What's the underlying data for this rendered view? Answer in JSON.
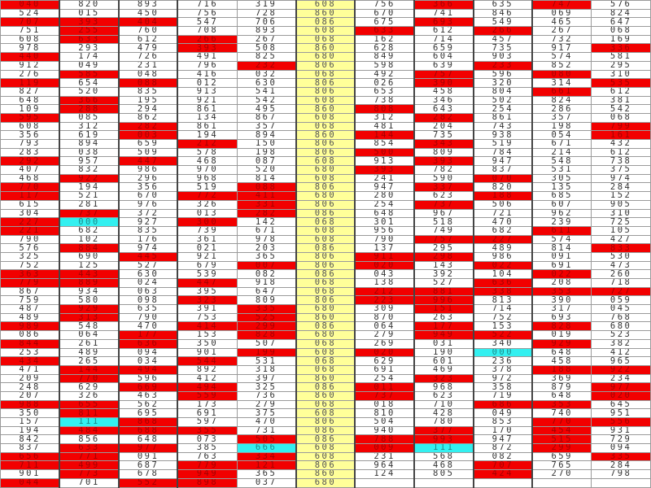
{
  "colors": {
    "red": "#f20000",
    "cyan": "#33f0f0",
    "middle": "#ffff99"
  },
  "rows": [
    [
      {
        "v": "040",
        "fill": "red"
      },
      "820",
      "893",
      "716",
      "319",
      "608",
      "756",
      {
        "v": "366",
        "fill": "red"
      },
      "635",
      {
        "v": "747",
        "fill": "red"
      },
      "576"
    ],
    [
      "524",
      "015",
      "450",
      "756",
      "728",
      "860",
      "670",
      "741",
      "846",
      "069",
      "824"
    ],
    [
      {
        "v": "707",
        "fill": "red"
      },
      {
        "v": "393",
        "fill": "red"
      },
      {
        "v": "404",
        "fill": "red"
      },
      "547",
      "706",
      "086",
      "675",
      {
        "v": "693",
        "fill": "red"
      },
      "549",
      "465",
      "647"
    ],
    [
      "751",
      {
        "v": "255",
        "fill": "red"
      },
      "760",
      "708",
      "893",
      "608",
      {
        "v": "633",
        "fill": "red"
      },
      "612",
      {
        "v": "266",
        "fill": "red"
      },
      "267",
      "068"
    ],
    [
      "608",
      {
        "v": "633",
        "fill": "red"
      },
      "612",
      {
        "v": "266",
        "fill": "red"
      },
      "267",
      "068",
      "162",
      "714",
      "457",
      "732",
      "169"
    ],
    [
      "978",
      "293",
      "479",
      {
        "v": "393",
        "fill": "red"
      },
      "508",
      "860",
      "628",
      "659",
      "735",
      "917",
      {
        "v": "336",
        "fill": "red"
      }
    ],
    [
      {
        "v": "440",
        "fill": "red"
      },
      "174",
      "726",
      "491",
      "825",
      "680",
      "849",
      "604",
      "903",
      "574",
      "581"
    ],
    [
      "912",
      "049",
      "231",
      "796",
      {
        "v": "232",
        "fill": "red"
      },
      "806",
      "598",
      "639",
      {
        "v": "233",
        "fill": "red"
      },
      "852",
      "295"
    ],
    [
      "276",
      {
        "v": "585",
        "fill": "red"
      },
      "048",
      "416",
      "032",
      "068",
      "492",
      {
        "v": "757",
        "fill": "red"
      },
      "596",
      {
        "v": "080",
        "fill": "red"
      },
      "310"
    ],
    [
      {
        "v": "119",
        "fill": "red"
      },
      "654",
      {
        "v": "088",
        "fill": "red"
      },
      "012",
      "630",
      "806",
      "026",
      {
        "v": "390",
        "fill": "red"
      },
      "320",
      "314",
      {
        "v": "535",
        "fill": "red"
      }
    ],
    [
      "827",
      "520",
      "835",
      "913",
      "541",
      "806",
      "653",
      "458",
      "804",
      {
        "v": "661",
        "fill": "red"
      },
      "612"
    ],
    [
      "648",
      {
        "v": "366",
        "fill": "red"
      },
      "195",
      "921",
      "542",
      "608",
      "738",
      "346",
      "502",
      "824",
      "381"
    ],
    [
      "109",
      {
        "v": "288",
        "fill": "red"
      },
      "294",
      "861",
      "495",
      "860",
      {
        "v": "808",
        "fill": "red"
      },
      "643",
      "254",
      "286",
      "542"
    ],
    [
      {
        "v": "595",
        "fill": "red"
      },
      "085",
      "862",
      "134",
      "867",
      "608",
      "312",
      {
        "v": "282",
        "fill": "red"
      },
      "861",
      "357",
      "068"
    ],
    [
      "608",
      "312",
      {
        "v": "282",
        "fill": "red"
      },
      "861",
      "357",
      "068",
      "481",
      "204",
      "743",
      "198",
      {
        "v": "799",
        "fill": "red"
      }
    ],
    [
      "356",
      "619",
      {
        "v": "003",
        "fill": "red"
      },
      "194",
      "894",
      "860",
      {
        "v": "144",
        "fill": "red"
      },
      "735",
      "938",
      "054",
      {
        "v": "161",
        "fill": "red"
      }
    ],
    [
      "793",
      "894",
      "659",
      {
        "v": "212",
        "fill": "red"
      },
      "150",
      "806",
      "854",
      {
        "v": "343",
        "fill": "red"
      },
      "519",
      "671",
      "432"
    ],
    [
      "283",
      "038",
      "509",
      "578",
      "198",
      "806",
      {
        "v": "500",
        "fill": "red"
      },
      "809",
      "784",
      "214",
      "612"
    ],
    [
      {
        "v": "292",
        "fill": "red"
      },
      "957",
      {
        "v": "447",
        "fill": "red"
      },
      "468",
      "087",
      "608",
      "913",
      {
        "v": "393",
        "fill": "red"
      },
      "947",
      "548",
      "738"
    ],
    [
      "407",
      "832",
      "986",
      "970",
      "520",
      "680",
      {
        "v": "393",
        "fill": "red"
      },
      "782",
      "837",
      "531",
      "375"
    ],
    [
      "468",
      {
        "v": "922",
        "fill": "red"
      },
      "296",
      "968",
      "814",
      "608",
      "241",
      "590",
      {
        "v": "070",
        "fill": "red"
      },
      "305",
      "974"
    ],
    [
      {
        "v": "770",
        "fill": "red"
      },
      "194",
      "356",
      "519",
      {
        "v": "088",
        "fill": "red"
      },
      "806",
      "947",
      {
        "v": "337",
        "fill": "red"
      },
      "820",
      "135",
      "284"
    ],
    [
      {
        "v": "117",
        "fill": "red"
      },
      "521",
      "670",
      {
        "v": "772",
        "fill": "red"
      },
      {
        "v": "411",
        "fill": "red"
      },
      "680",
      "280",
      "623",
      {
        "v": "188",
        "fill": "red"
      },
      "685",
      "152"
    ],
    [
      "615",
      "281",
      "976",
      "326",
      {
        "v": "331",
        "fill": "red"
      },
      "806",
      "254",
      {
        "v": "737",
        "fill": "red"
      },
      "506",
      "607",
      "905"
    ],
    [
      "304",
      {
        "v": "737",
        "fill": "red"
      },
      "372",
      "013",
      {
        "v": "282",
        "fill": "red"
      },
      "086",
      "648",
      "967",
      "721",
      "962",
      "310"
    ],
    [
      {
        "v": "227",
        "fill": "red"
      },
      {
        "v": "000",
        "fill": "cyan"
      },
      "927",
      {
        "v": "300",
        "fill": "red"
      },
      "142",
      "068",
      "301",
      "518",
      "470",
      "239",
      "725"
    ],
    [
      {
        "v": "221",
        "fill": "red"
      },
      "682",
      "835",
      "739",
      "671",
      "608",
      "956",
      "749",
      "682",
      {
        "v": "611",
        "fill": "red"
      },
      "105"
    ],
    [
      "790",
      "102",
      "176",
      "361",
      "978",
      "608",
      "790",
      {
        "v": "757",
        "fill": "red"
      },
      {
        "v": "227",
        "fill": "red"
      },
      "574",
      "427"
    ],
    [
      "576",
      {
        "v": "884",
        "fill": "red"
      },
      "974",
      "021",
      "203",
      "086",
      "137",
      "295",
      "489",
      "814",
      {
        "v": "833",
        "fill": "red"
      }
    ],
    [
      "325",
      "690",
      {
        "v": "445",
        "fill": "red"
      },
      "921",
      "365",
      "806",
      {
        "v": "911",
        "fill": "red"
      },
      {
        "v": "298",
        "fill": "red"
      },
      "986",
      "091",
      "530"
    ],
    [
      "752",
      "125",
      "527",
      "679",
      {
        "v": "007",
        "fill": "red"
      },
      "806",
      {
        "v": "020",
        "fill": "red"
      },
      "143",
      {
        "v": "022",
        "fill": "red"
      },
      "691",
      "473"
    ],
    [
      {
        "v": "363",
        "fill": "red"
      },
      {
        "v": "443",
        "fill": "red"
      },
      "630",
      "539",
      "082",
      "086",
      "043",
      "392",
      "104",
      {
        "v": "022",
        "fill": "red"
      },
      "260"
    ],
    [
      {
        "v": "779",
        "fill": "red"
      },
      {
        "v": "889",
        "fill": "red"
      },
      "024",
      {
        "v": "447",
        "fill": "red"
      },
      "918",
      "068",
      "138",
      "527",
      {
        "v": "636",
        "fill": "red"
      },
      "208",
      "718"
    ],
    [
      "867",
      "934",
      "063",
      "395",
      "647",
      "068",
      {
        "v": "212",
        "fill": "red"
      },
      {
        "v": "881",
        "fill": "red"
      },
      {
        "v": "338",
        "fill": "red"
      },
      {
        "v": "353",
        "fill": "red"
      },
      {
        "v": "727",
        "fill": "red"
      }
    ],
    [
      "759",
      "580",
      "098",
      {
        "v": "323",
        "fill": "red"
      },
      "809",
      "806",
      {
        "v": "223",
        "fill": "red"
      },
      {
        "v": "996",
        "fill": "red"
      },
      "813",
      "390",
      "059"
    ],
    [
      "487",
      {
        "v": "929",
        "fill": "red"
      },
      "635",
      "391",
      {
        "v": "335",
        "fill": "red"
      },
      "680",
      "309",
      {
        "v": "151",
        "fill": "red"
      },
      "714",
      "317",
      "045"
    ],
    [
      "489",
      {
        "v": "313",
        "fill": "red"
      },
      "790",
      "753",
      {
        "v": "525",
        "fill": "red"
      },
      "860",
      "870",
      "263",
      "752",
      "693",
      "768"
    ],
    [
      {
        "v": "989",
        "fill": "red"
      },
      "548",
      "470",
      {
        "v": "414",
        "fill": "red"
      },
      {
        "v": "299",
        "fill": "red"
      },
      "086",
      "064",
      {
        "v": "177",
        "fill": "red"
      },
      "153",
      {
        "v": "828",
        "fill": "red"
      },
      "680"
    ],
    [
      "086",
      "064",
      {
        "v": "177",
        "fill": "red"
      },
      "153",
      {
        "v": "828",
        "fill": "red"
      },
      "680",
      "279",
      {
        "v": "949",
        "fill": "red"
      },
      {
        "v": "522",
        "fill": "red"
      },
      "019",
      "523"
    ],
    [
      {
        "v": "844",
        "fill": "red"
      },
      "261",
      {
        "v": "636",
        "fill": "red"
      },
      "350",
      "507",
      "068",
      "269",
      "031",
      "340",
      {
        "v": "929",
        "fill": "red"
      },
      "382"
    ],
    [
      "253",
      "489",
      "094",
      "901",
      {
        "v": "199",
        "fill": "red"
      },
      "608",
      {
        "v": "020",
        "fill": "red"
      },
      "190",
      {
        "v": "000",
        "fill": "cyan"
      },
      "648",
      "412"
    ],
    [
      {
        "v": "434",
        "fill": "red"
      },
      "265",
      "034",
      {
        "v": "544",
        "fill": "red"
      },
      "531",
      "068",
      "629",
      "601",
      "236",
      "458",
      "965"
    ],
    [
      "471",
      {
        "v": "144",
        "fill": "red"
      },
      {
        "v": "494",
        "fill": "red"
      },
      "892",
      "318",
      "068",
      "691",
      "469",
      "378",
      {
        "v": "188",
        "fill": "red"
      },
      {
        "v": "922",
        "fill": "red"
      }
    ],
    [
      "209",
      {
        "v": "770",
        "fill": "red"
      },
      "596",
      "412",
      "397",
      "860",
      "254",
      {
        "v": "323",
        "fill": "red"
      },
      "972",
      "369",
      "234"
    ],
    [
      "248",
      "629",
      {
        "v": "669",
        "fill": "red"
      },
      {
        "v": "494",
        "fill": "red"
      },
      "325",
      "086",
      {
        "v": "011",
        "fill": "red"
      },
      "968",
      "358",
      "879",
      {
        "v": "977",
        "fill": "red"
      }
    ],
    [
      "207",
      "326",
      "463",
      {
        "v": "559",
        "fill": "red"
      },
      "736",
      "860",
      {
        "v": "737",
        "fill": "red"
      },
      "623",
      "719",
      "648",
      {
        "v": "020",
        "fill": "red"
      }
    ],
    [
      {
        "v": "988",
        "fill": "red"
      },
      {
        "v": "655",
        "fill": "red"
      },
      "562",
      "173",
      "279",
      "068",
      "018",
      "710",
      {
        "v": "686",
        "fill": "red"
      },
      {
        "v": "353",
        "fill": "red"
      },
      "645"
    ],
    [
      "350",
      {
        "v": "811",
        "fill": "red"
      },
      "695",
      "691",
      "375",
      "608",
      "810",
      "428",
      "049",
      "740",
      "951"
    ],
    [
      "157",
      {
        "v": "111",
        "fill": "cyan"
      },
      {
        "v": "868",
        "fill": "red"
      },
      "597",
      "470",
      "806",
      "504",
      "780",
      "853",
      {
        "v": "770",
        "fill": "red"
      },
      {
        "v": "556",
        "fill": "red"
      }
    ],
    [
      "194",
      {
        "v": "484",
        "fill": "red"
      },
      {
        "v": "688",
        "fill": "red"
      },
      {
        "v": "355",
        "fill": "red"
      },
      "731",
      "086",
      "940",
      {
        "v": "377",
        "fill": "red"
      },
      "170",
      {
        "v": "454",
        "fill": "red"
      },
      "931"
    ],
    [
      "842",
      "856",
      "648",
      "073",
      {
        "v": "505",
        "fill": "red"
      },
      "086",
      {
        "v": "788",
        "fill": "red"
      },
      {
        "v": "993",
        "fill": "red"
      },
      "947",
      {
        "v": "515",
        "fill": "red"
      },
      "729"
    ],
    [
      "837",
      {
        "v": "633",
        "fill": "red"
      },
      {
        "v": "977",
        "fill": "red"
      },
      "385",
      {
        "v": "666",
        "fill": "cyan"
      },
      "608",
      {
        "v": "009",
        "fill": "red"
      },
      {
        "v": "111",
        "fill": "cyan"
      },
      "872",
      {
        "v": "299",
        "fill": "red"
      },
      "094"
    ],
    [
      {
        "v": "656",
        "fill": "red"
      },
      {
        "v": "771",
        "fill": "red"
      },
      "091",
      "763",
      {
        "v": "334",
        "fill": "red"
      },
      "608",
      "231",
      "568",
      "082",
      "659",
      {
        "v": "335",
        "fill": "red"
      }
    ],
    [
      {
        "v": "711",
        "fill": "red"
      },
      {
        "v": "499",
        "fill": "red"
      },
      "687",
      {
        "v": "779",
        "fill": "red"
      },
      {
        "v": "121",
        "fill": "red"
      },
      "806",
      "964",
      "468",
      {
        "v": "707",
        "fill": "red"
      },
      "765",
      "284"
    ],
    [
      "901",
      {
        "v": "773",
        "fill": "red"
      },
      "678",
      {
        "v": "949",
        "fill": "red"
      },
      "365",
      "860",
      "124",
      "805",
      {
        "v": "424",
        "fill": "red"
      },
      "270",
      "798"
    ],
    [
      {
        "v": "044",
        "fill": "red"
      },
      "701",
      {
        "v": "552",
        "fill": "red"
      },
      {
        "v": "898",
        "fill": "red"
      },
      "037",
      "680",
      "",
      "",
      "",
      "",
      ""
    ]
  ]
}
